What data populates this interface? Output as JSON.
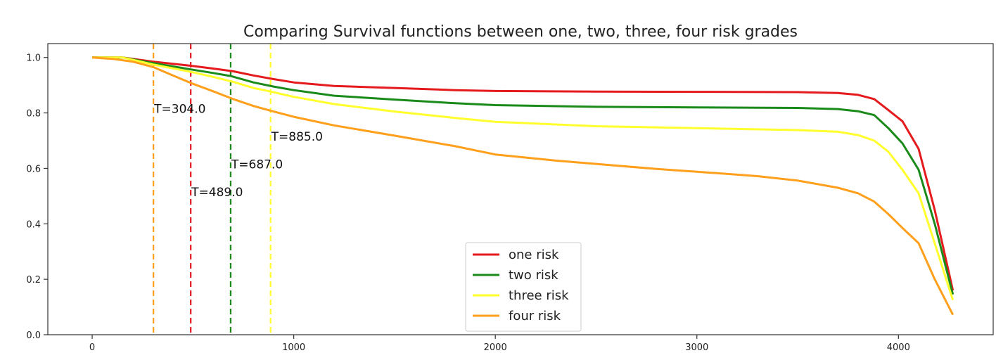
{
  "chart_data": {
    "type": "line",
    "title": "Comparing Survival functions between one, two, three, four risk grades",
    "xlabel": "",
    "ylabel": "",
    "xlim": [
      -220,
      4470
    ],
    "ylim": [
      0.0,
      1.05
    ],
    "xticks": [
      0,
      1000,
      2000,
      3000,
      4000
    ],
    "yticks": [
      0.0,
      0.2,
      0.4,
      0.6,
      0.8,
      1.0
    ],
    "xtick_labels": [
      "0",
      "1000",
      "2000",
      "3000",
      "4000"
    ],
    "ytick_labels": [
      "0.0",
      "0.2",
      "0.4",
      "0.6",
      "0.8",
      "1.0"
    ],
    "grid": false,
    "legend_position": "lower-center",
    "series": [
      {
        "name": "one risk",
        "color": "#e41a1c",
        "x": [
          0,
          150,
          300,
          489,
          600,
          700,
          800,
          900,
          1000,
          1200,
          1500,
          1800,
          2000,
          2500,
          3000,
          3500,
          3700,
          3800,
          3880,
          3950,
          4020,
          4100,
          4180,
          4270
        ],
        "y": [
          1.0,
          1.0,
          0.985,
          0.97,
          0.96,
          0.95,
          0.935,
          0.922,
          0.91,
          0.897,
          0.89,
          0.882,
          0.879,
          0.877,
          0.876,
          0.875,
          0.872,
          0.865,
          0.85,
          0.81,
          0.77,
          0.67,
          0.45,
          0.16
        ]
      },
      {
        "name": "two risk",
        "color": "#1a8a1a",
        "x": [
          0,
          150,
          300,
          489,
          600,
          687,
          800,
          900,
          1000,
          1200,
          1500,
          1800,
          2000,
          2500,
          3000,
          3500,
          3700,
          3800,
          3880,
          3950,
          4020,
          4100,
          4180,
          4270
        ],
        "y": [
          1.0,
          1.0,
          0.98,
          0.957,
          0.944,
          0.933,
          0.91,
          0.895,
          0.882,
          0.862,
          0.848,
          0.835,
          0.828,
          0.822,
          0.82,
          0.818,
          0.814,
          0.806,
          0.792,
          0.745,
          0.69,
          0.595,
          0.4,
          0.145
        ]
      },
      {
        "name": "three risk",
        "color": "#ffff2e",
        "x": [
          0,
          150,
          300,
          489,
          600,
          700,
          800,
          885,
          1000,
          1200,
          1500,
          1800,
          2000,
          2500,
          3000,
          3500,
          3700,
          3800,
          3880,
          3950,
          4020,
          4100,
          4180,
          4270
        ],
        "y": [
          1.0,
          1.0,
          0.975,
          0.948,
          0.93,
          0.912,
          0.89,
          0.877,
          0.858,
          0.832,
          0.805,
          0.782,
          0.768,
          0.752,
          0.745,
          0.738,
          0.732,
          0.72,
          0.7,
          0.66,
          0.595,
          0.51,
          0.33,
          0.125
        ]
      },
      {
        "name": "four risk",
        "color": "#ff9f1c",
        "x": [
          0,
          100,
          200,
          304,
          400,
          500,
          600,
          700,
          800,
          900,
          1000,
          1200,
          1500,
          1800,
          2000,
          2300,
          2600,
          2800,
          3000,
          3300,
          3500,
          3700,
          3800,
          3880,
          3950,
          4020,
          4100,
          4180,
          4270
        ],
        "y": [
          1.0,
          0.995,
          0.985,
          0.965,
          0.935,
          0.905,
          0.878,
          0.85,
          0.825,
          0.805,
          0.786,
          0.755,
          0.718,
          0.68,
          0.65,
          0.628,
          0.61,
          0.598,
          0.588,
          0.572,
          0.556,
          0.53,
          0.51,
          0.48,
          0.435,
          0.385,
          0.33,
          0.2,
          0.072
        ]
      }
    ],
    "vlines": [
      {
        "x": 304,
        "color": "#ff9f1c",
        "label": "T=304.0",
        "label_y": 0.815
      },
      {
        "x": 489,
        "color": "#e41a1c",
        "label": "T=489.0",
        "label_y": 0.515
      },
      {
        "x": 687,
        "color": "#1a8a1a",
        "label": "T=687.0",
        "label_y": 0.615
      },
      {
        "x": 885,
        "color": "#ffff2e",
        "label": "T=885.0",
        "label_y": 0.715
      }
    ]
  }
}
